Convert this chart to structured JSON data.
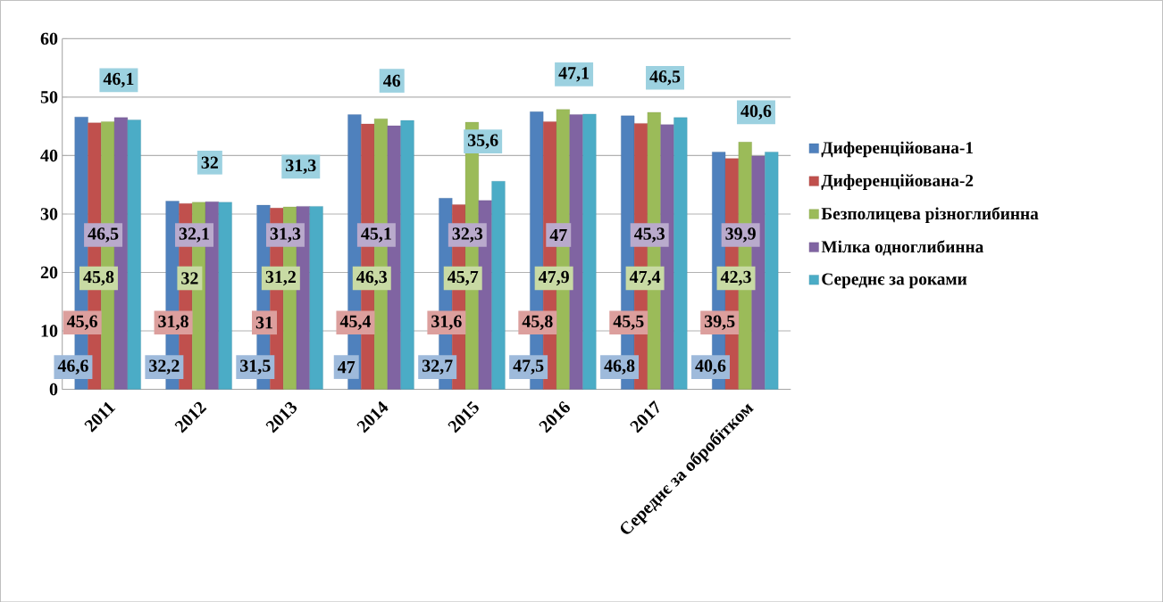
{
  "chart_data": {
    "type": "bar",
    "categories": [
      "2011",
      "2012",
      "2013",
      "2014",
      "2015",
      "2016",
      "2017",
      "Середнє за обробітком"
    ],
    "series": [
      {
        "name": "Диференційована-1",
        "color": "#4f81bd",
        "values": [
          46.6,
          32.2,
          31.5,
          47,
          32.7,
          47.5,
          46.8,
          40.6
        ],
        "value_labels": [
          "46,6",
          "32,2",
          "31,5",
          "47",
          "32,7",
          "47,5",
          "46,8",
          "40,6"
        ]
      },
      {
        "name": "Диференційована-2",
        "color": "#c0504d",
        "values": [
          45.6,
          31.8,
          31,
          45.4,
          31.6,
          45.8,
          45.5,
          39.5
        ],
        "value_labels": [
          "45,6",
          "31,8",
          "31",
          "45,4",
          "31,6",
          "45,8",
          "45,5",
          "39,5"
        ]
      },
      {
        "name": "Безполицева різноглибинна",
        "color": "#9bbb59",
        "values": [
          45.8,
          32,
          31.2,
          46.3,
          45.7,
          47.9,
          47.4,
          42.3
        ],
        "value_labels": [
          "45,8",
          "32",
          "31,2",
          "46,3",
          "45,7",
          "47,9",
          "47,4",
          "42,3"
        ]
      },
      {
        "name": "Мілка одноглибинна",
        "color": "#8064a2",
        "values": [
          46.5,
          32.1,
          31.3,
          45.1,
          32.3,
          47,
          45.3,
          39.9
        ],
        "value_labels": [
          "46,5",
          "32,1",
          "31,3",
          "45,1",
          "32,3",
          "47",
          "45,3",
          "39,9"
        ]
      },
      {
        "name": "Середнє за роками",
        "color": "#4bacc6",
        "values": [
          46.1,
          32,
          31.3,
          46,
          35.6,
          47.1,
          46.5,
          40.6
        ],
        "value_labels": [
          "46,1",
          "32",
          "31,3",
          "46",
          "35,6",
          "47,1",
          "46,5",
          "40,6"
        ]
      }
    ],
    "ylim": [
      0,
      60
    ],
    "yticks": [
      0,
      10,
      20,
      30,
      40,
      50,
      60
    ],
    "grid": "y",
    "legend": "right"
  }
}
